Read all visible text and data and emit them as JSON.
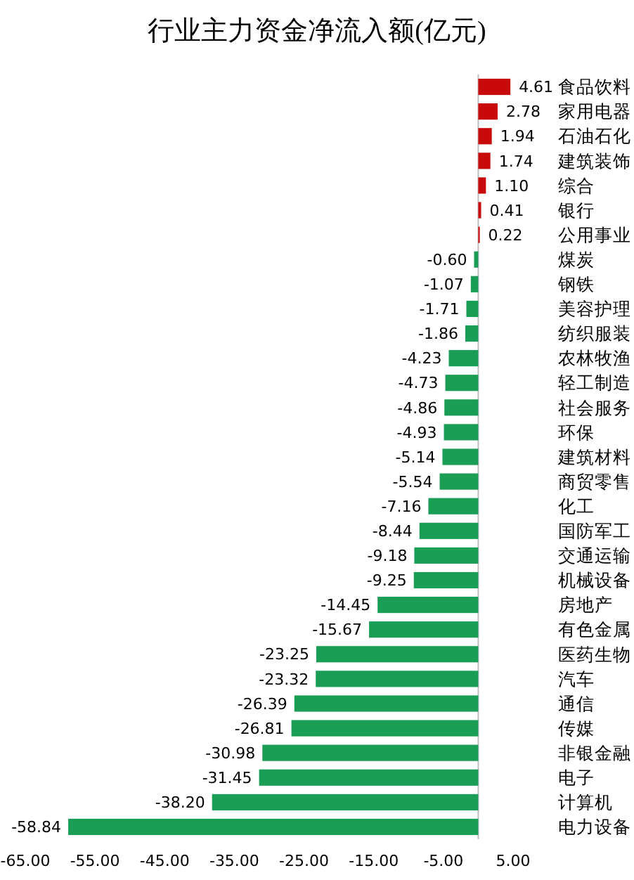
{
  "chart_data": {
    "type": "bar",
    "orientation": "horizontal",
    "title": "行业主力资金净流入额(亿元)",
    "categories": [
      "食品饮料",
      "家用电器",
      "石油石化",
      "建筑装饰",
      "综合",
      "银行",
      "公用事业",
      "煤炭",
      "钢铁",
      "美容护理",
      "纺织服装",
      "农林牧渔",
      "轻工制造",
      "社会服务",
      "环保",
      "建筑材料",
      "商贸零售",
      "化工",
      "国防军工",
      "交通运输",
      "机械设备",
      "房地产",
      "有色金属",
      "医药生物",
      "汽车",
      "通信",
      "传媒",
      "非银金融",
      "电子",
      "计算机",
      "电力设备"
    ],
    "values": [
      4.61,
      2.78,
      1.94,
      1.74,
      1.1,
      0.41,
      0.22,
      -0.6,
      -1.07,
      -1.71,
      -1.86,
      -4.23,
      -4.73,
      -4.86,
      -4.93,
      -5.14,
      -5.54,
      -7.16,
      -8.44,
      -9.18,
      -9.25,
      -14.45,
      -15.67,
      -23.25,
      -23.32,
      -26.39,
      -26.81,
      -30.98,
      -31.45,
      -38.2,
      -58.84
    ],
    "value_labels": [
      "4.61",
      "2.78",
      "1.94",
      "1.74",
      "1.10",
      "0.41",
      "0.22",
      "-0.60",
      "-1.07",
      "-1.71",
      "-1.86",
      "-4.23",
      "-4.73",
      "-4.86",
      "-4.93",
      "-5.14",
      "-5.54",
      "-7.16",
      "-8.44",
      "-9.18",
      "-9.25",
      "-14.45",
      "-15.67",
      "-23.25",
      "-23.32",
      "-26.39",
      "-26.81",
      "-30.98",
      "-31.45",
      "-38.20",
      "-58.84"
    ],
    "colors": [
      "#c80a0a",
      "#c80a0a",
      "#c80a0a",
      "#c80a0a",
      "#c80a0a",
      "#c80a0a",
      "#c80a0a",
      "#1a9e55",
      "#1a9e55",
      "#1a9e55",
      "#1a9e55",
      "#1a9e55",
      "#1a9e55",
      "#1a9e55",
      "#1a9e55",
      "#1a9e55",
      "#1a9e55",
      "#1a9e55",
      "#1a9e55",
      "#1a9e55",
      "#1a9e55",
      "#1a9e55",
      "#1a9e55",
      "#1a9e55",
      "#1a9e55",
      "#1a9e55",
      "#1a9e55",
      "#1a9e55",
      "#1a9e55",
      "#1a9e55",
      "#1a9e55"
    ],
    "xlim": [
      -65,
      5
    ],
    "xticks": [
      {
        "value": -65,
        "label": "-65.00"
      },
      {
        "value": -55,
        "label": "-55.00"
      },
      {
        "value": -45,
        "label": "-45.00"
      },
      {
        "value": -35,
        "label": "-35.00"
      },
      {
        "value": -25,
        "label": "-25.00"
      },
      {
        "value": -15,
        "label": "-15.00"
      },
      {
        "value": -5,
        "label": "-5.00"
      },
      {
        "value": 5,
        "label": "5.00"
      }
    ]
  }
}
